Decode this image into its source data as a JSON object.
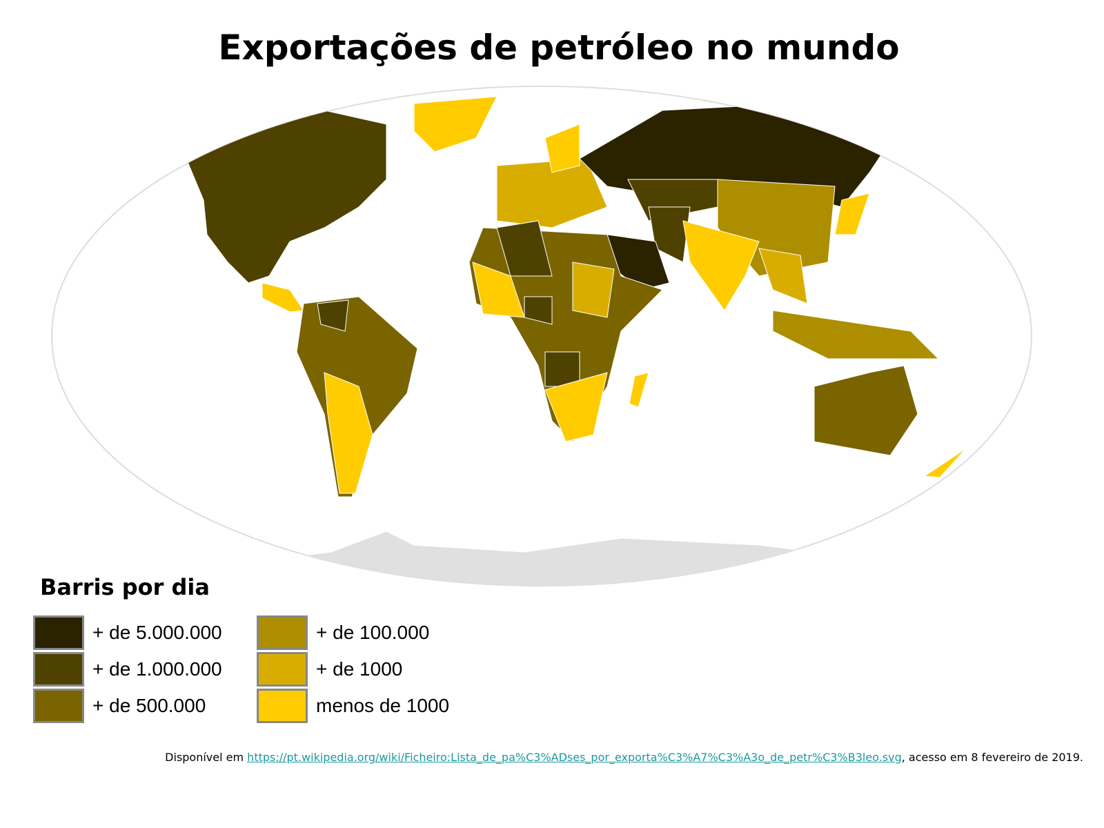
{
  "title": "Exportações de petróleo no mundo",
  "legend": {
    "title": "Barris por dia",
    "items": [
      {
        "label": "+ de 5.000.000",
        "color": "#2b2200"
      },
      {
        "label": "+ de 1.000.000",
        "color": "#4f4100"
      },
      {
        "label": "+ de 500.000",
        "color": "#7a6400"
      },
      {
        "label": "+ de 100.000",
        "color": "#ad8e00"
      },
      {
        "label": "+ de 1000",
        "color": "#d9ad00"
      },
      {
        "label": "menos de 1000",
        "color": "#ffcc00"
      }
    ]
  },
  "source": {
    "prefix": "Disponível em",
    "link": "https://pt.wikipedia.org/wiki/Ficheiro:Lista_de_pa%C3%ADses_por_exporta%C3%A7%C3%A3o_de_petr%C3%B3leo.svg",
    "suffix": ", acesso em 8 fevereiro de 2019."
  }
}
